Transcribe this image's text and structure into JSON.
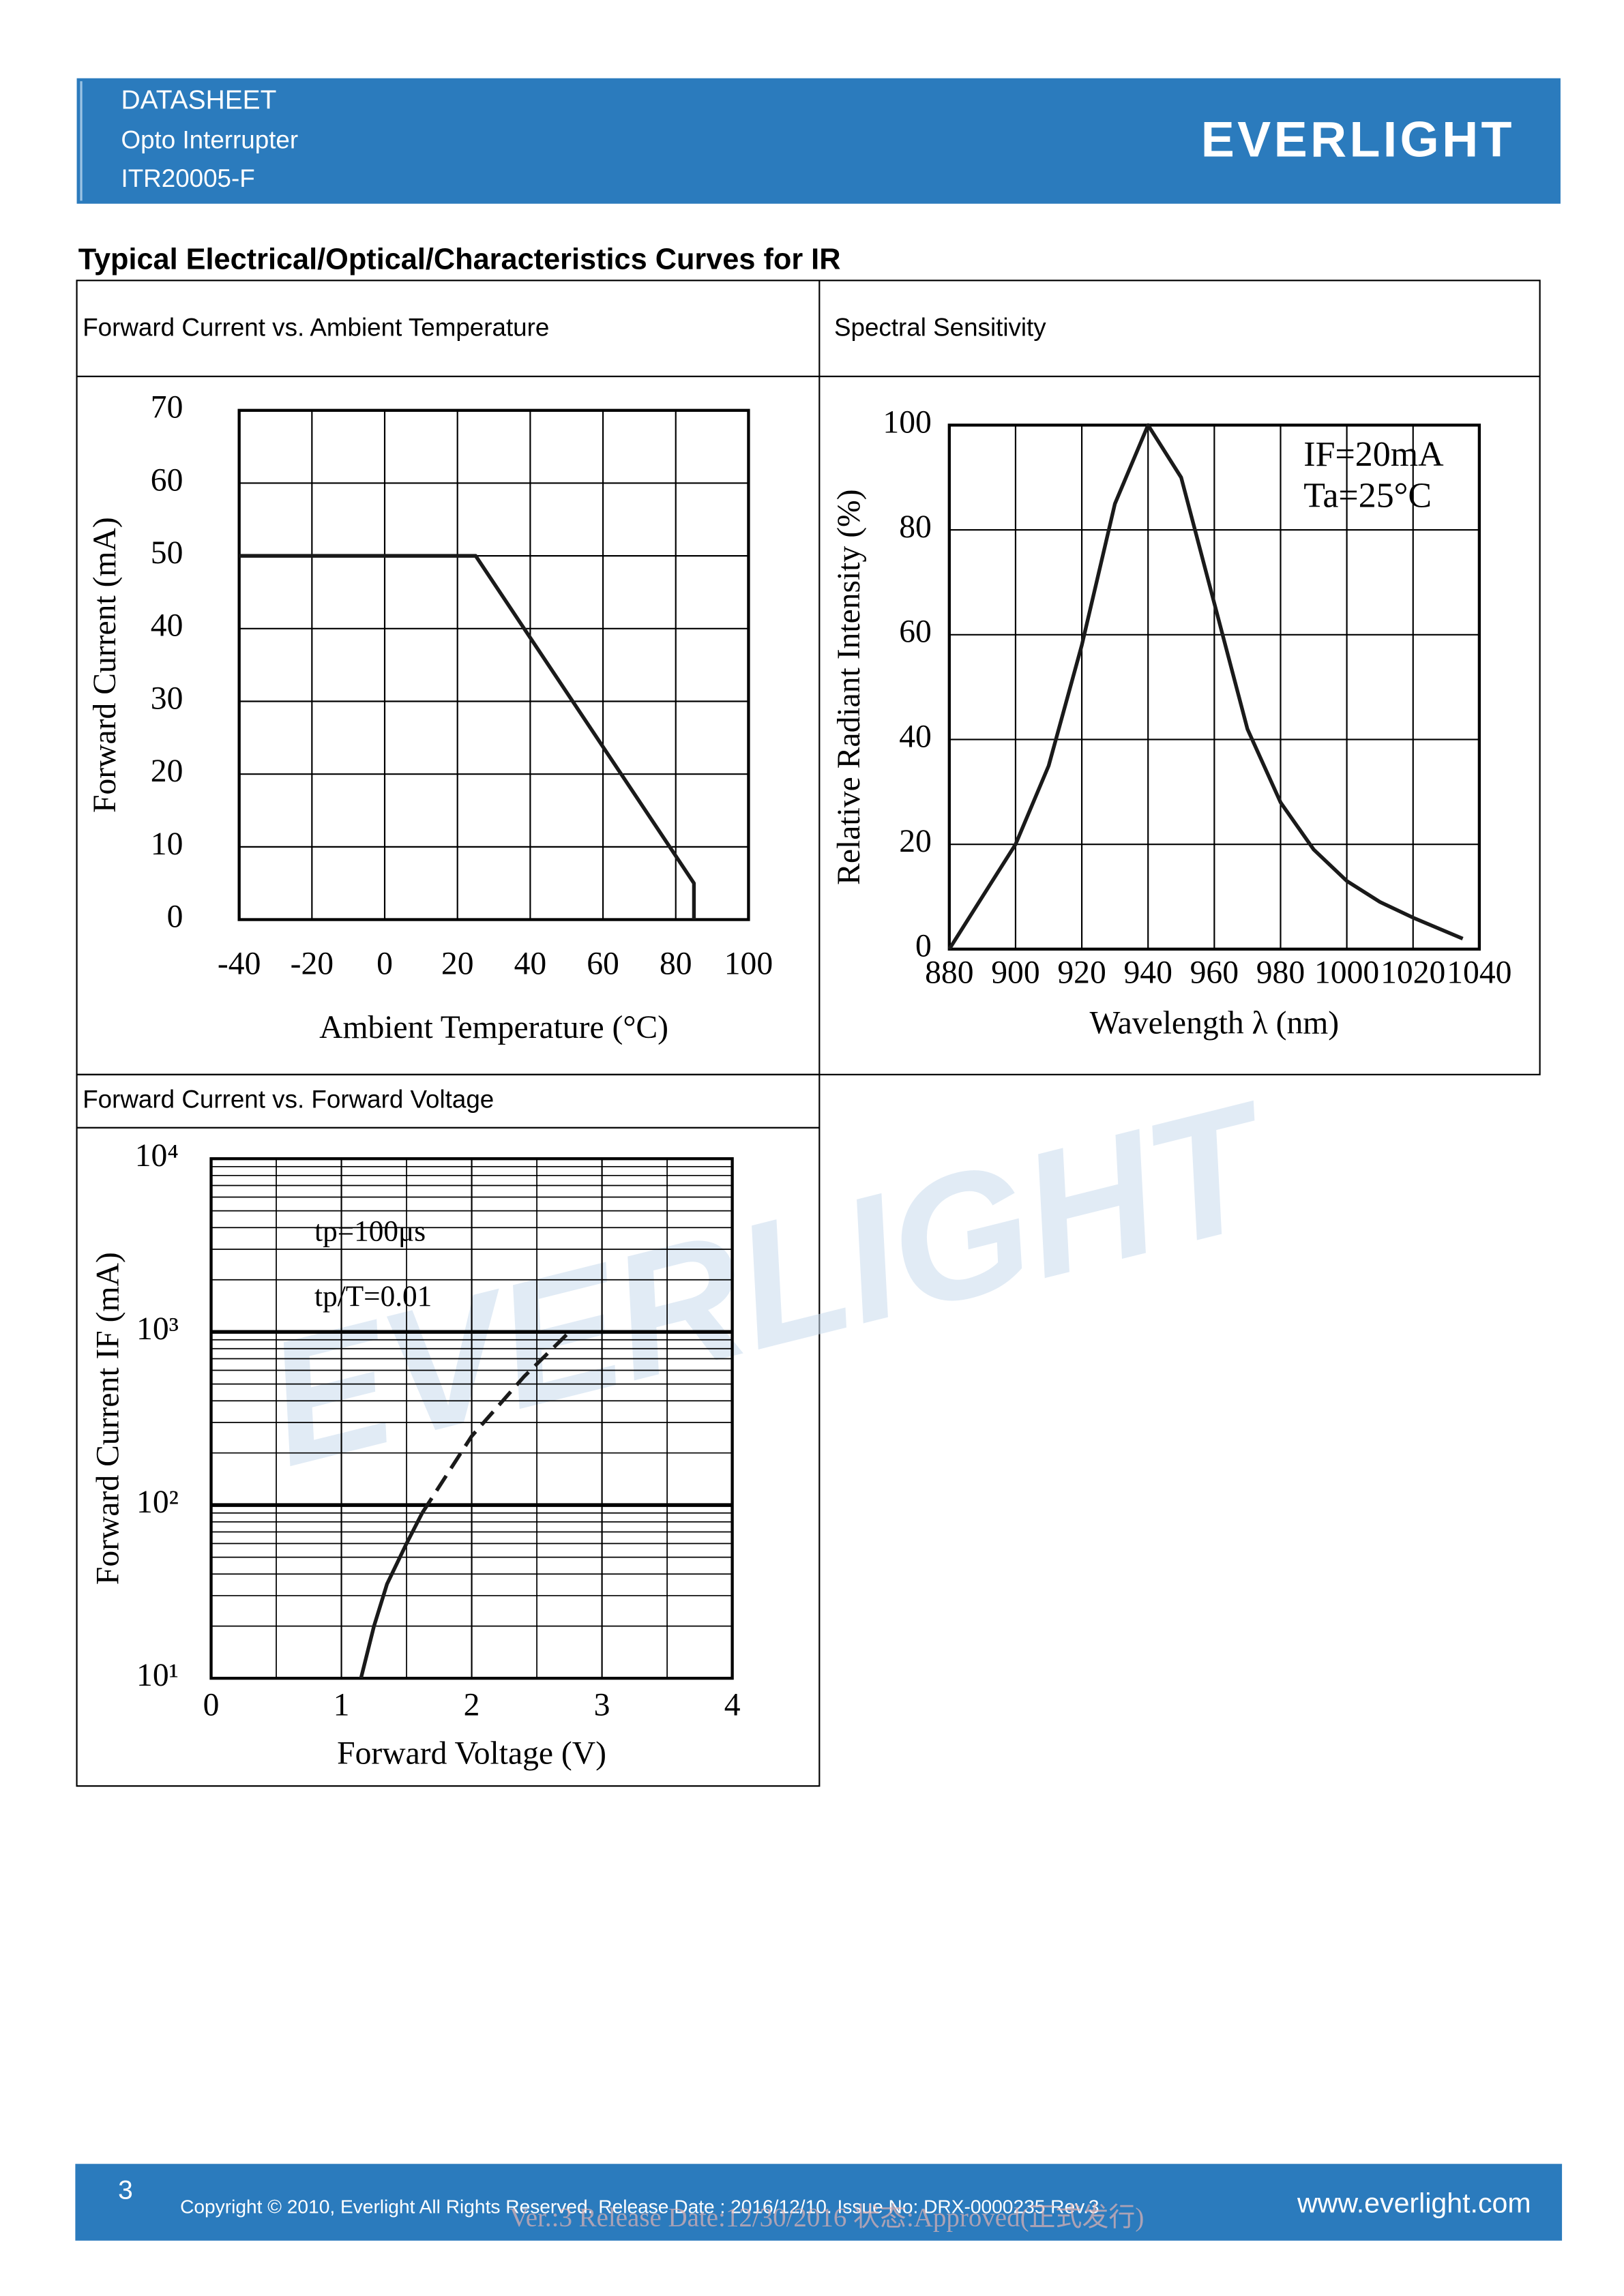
{
  "header": {
    "title": "DATASHEET",
    "subtitle": "Opto Interrupter",
    "part": "ITR20005-F",
    "logo": "EVERLIGHT"
  },
  "section_title": "Typical Electrical/Optical/Characteristics Curves for IR",
  "watermark": "EVERLIGHT",
  "charts": [
    {
      "type": "line",
      "caption": "Forward Current vs. Ambient Temperature",
      "x_label": "Ambient Temperature (°C)",
      "y_label": "Forward Current (mA)",
      "x": [
        -40,
        25,
        85,
        85
      ],
      "series": [
        {
          "color": "#1a1a1a",
          "values": [
            50,
            50,
            5,
            0
          ]
        }
      ],
      "xlim": [
        -40,
        100
      ],
      "ylim": [
        0,
        70
      ],
      "xticks": [
        -40,
        -20,
        0,
        20,
        40,
        60,
        80,
        100
      ],
      "yticks": [
        0,
        10,
        20,
        30,
        40,
        50,
        60,
        70
      ],
      "grid": true
    },
    {
      "type": "line",
      "caption": "Spectral Sensitivity",
      "x_label": "Wavelength λ (nm)",
      "y_label": "Relative Radiant Intensity (%)",
      "annotations": [
        "IF=20mA",
        "Ta=25°C"
      ],
      "x": [
        880,
        890,
        900,
        910,
        920,
        930,
        940,
        950,
        960,
        970,
        980,
        990,
        1000,
        1010,
        1020,
        1035
      ],
      "series": [
        {
          "color": "#1a1a1a",
          "values": [
            0,
            10,
            20,
            35,
            58,
            85,
            100,
            90,
            66,
            42,
            28,
            19,
            13,
            9,
            6,
            2
          ]
        }
      ],
      "xlim": [
        880,
        1040
      ],
      "ylim": [
        0,
        100
      ],
      "xticks": [
        880,
        900,
        920,
        940,
        960,
        980,
        1000,
        1020,
        1040
      ],
      "yticks": [
        0,
        20,
        40,
        60,
        80,
        100
      ],
      "grid": true
    },
    {
      "type": "line",
      "caption": "Forward Current vs. Forward Voltage",
      "x_label": "Forward Voltage (V)",
      "y_label": "Forward Current IF (mA)",
      "annotations": [
        "tp=100μs",
        "tp/T=0.01"
      ],
      "series": [
        {
          "color": "#1a1a1a",
          "line_style": "solid",
          "x": [
            1.15,
            1.25,
            1.35,
            1.5,
            1.62
          ],
          "values": [
            10,
            20,
            35,
            60,
            90
          ]
        },
        {
          "color": "#1a1a1a",
          "line_style": "dashed",
          "x": [
            1.62,
            2.0,
            2.4,
            2.75
          ],
          "values": [
            90,
            250,
            550,
            1000
          ]
        }
      ],
      "xlim": [
        0,
        4
      ],
      "ylim": [
        10,
        10000
      ],
      "log_y": true,
      "minor_grid": true,
      "xticks": [
        0,
        1,
        2,
        3,
        4
      ],
      "yticks": [
        {
          "value": 10,
          "label": "10¹"
        },
        {
          "value": 100,
          "label": "10²"
        },
        {
          "value": 1000,
          "label": "10³"
        },
        {
          "value": 10000,
          "label": "10⁴"
        }
      ],
      "grid": true
    }
  ],
  "footer": {
    "page": "3",
    "copyright": "Copyright © 2010, Everlight All Rights Reserved. Release Date : 2016/12/10. Issue No: DRX-0000235    Rev.3",
    "url": "www.everlight.com",
    "stamp": "Ver.:3    Release Date:12/30/2016    状态:Approved(正式发行)"
  }
}
